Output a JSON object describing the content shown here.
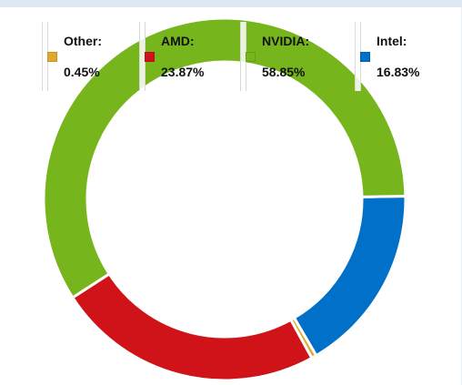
{
  "chart_data": {
    "type": "pie",
    "variant": "donut",
    "categories": [
      "Intel",
      "Other",
      "AMD",
      "NVIDIA"
    ],
    "values": [
      16.83,
      0.45,
      23.87,
      58.85
    ],
    "colors": {
      "Intel": "#0070c8",
      "Other": "#e0a82e",
      "AMD": "#d01219",
      "NVIDIA": "#76b51b"
    },
    "legend": {
      "placement": "top",
      "items": [
        {
          "label": "Other:",
          "value": "0.45%",
          "color": "#e0a82e"
        },
        {
          "label": "AMD:",
          "value": "23.87%",
          "color": "#d01219"
        },
        {
          "label": "NVIDIA:",
          "value": "58.85%",
          "color": "#76b51b"
        },
        {
          "label": "Intel:",
          "value": "16.83%",
          "color": "#0070c8"
        }
      ]
    }
  }
}
